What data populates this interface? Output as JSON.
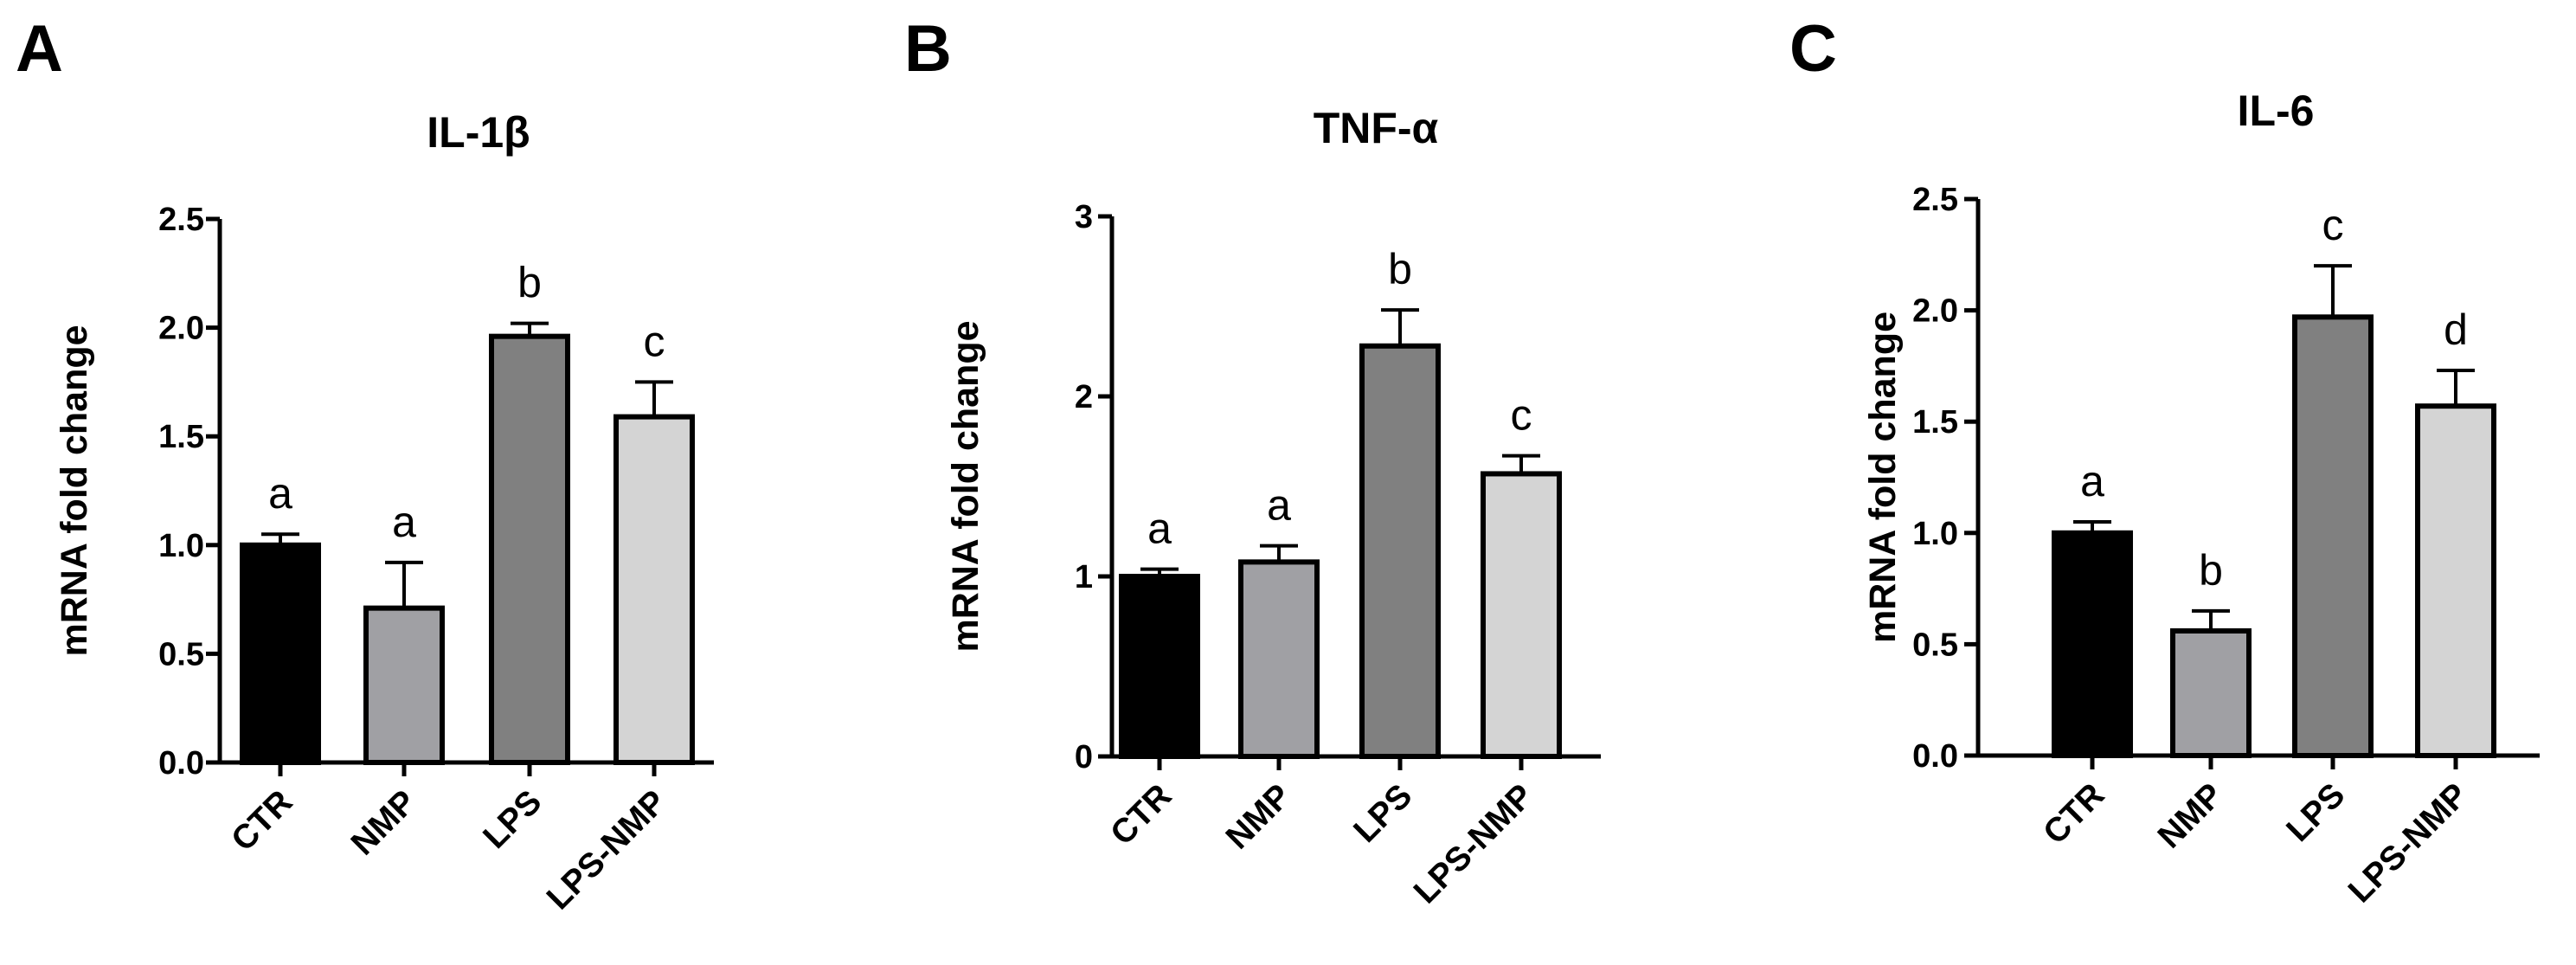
{
  "chart_data": [
    {
      "panel": "A",
      "type": "bar",
      "title": "IL-1β",
      "ylabel": "mRNA fold change",
      "xlabel": "",
      "categories": [
        "CTR",
        "NMP",
        "LPS",
        "LPS-NMP"
      ],
      "values": [
        1.0,
        0.71,
        1.96,
        1.59
      ],
      "error": [
        0.05,
        0.21,
        0.06,
        0.16
      ],
      "significance": [
        "a",
        "a",
        "b",
        "c"
      ],
      "ylim": [
        0,
        2.5
      ],
      "yticks": [
        "0.0",
        "0.5",
        "1.0",
        "1.5",
        "2.0",
        "2.5"
      ],
      "colors": [
        "#000000",
        "#a0a0a4",
        "#808080",
        "#d4d4d4"
      ],
      "grid": false,
      "legend": "none"
    },
    {
      "panel": "B",
      "type": "bar",
      "title": "TNF-α",
      "ylabel": "mRNA fold change",
      "xlabel": "",
      "categories": [
        "CTR",
        "NMP",
        "LPS",
        "LPS-NMP"
      ],
      "values": [
        1.0,
        1.08,
        2.28,
        1.57
      ],
      "error": [
        0.04,
        0.09,
        0.2,
        0.1
      ],
      "significance": [
        "a",
        "a",
        "b",
        "c"
      ],
      "ylim": [
        0,
        3
      ],
      "yticks": [
        "0",
        "1",
        "2",
        "3"
      ],
      "colors": [
        "#000000",
        "#a0a0a4",
        "#808080",
        "#d4d4d4"
      ],
      "grid": false,
      "legend": "none"
    },
    {
      "panel": "C",
      "type": "bar",
      "title": "IL-6",
      "ylabel": "mRNA fold change",
      "xlabel": "",
      "categories": [
        "CTR",
        "NMP",
        "LPS",
        "LPS-NMP"
      ],
      "values": [
        1.0,
        0.56,
        1.97,
        1.57
      ],
      "error": [
        0.05,
        0.09,
        0.23,
        0.16
      ],
      "significance": [
        "a",
        "b",
        "c",
        "d"
      ],
      "ylim": [
        0,
        2.5
      ],
      "yticks": [
        "0.0",
        "0.5",
        "1.0",
        "1.5",
        "2.0",
        "2.5"
      ],
      "colors": [
        "#000000",
        "#a0a0a4",
        "#808080",
        "#d4d4d4"
      ],
      "grid": false,
      "legend": "none"
    }
  ]
}
